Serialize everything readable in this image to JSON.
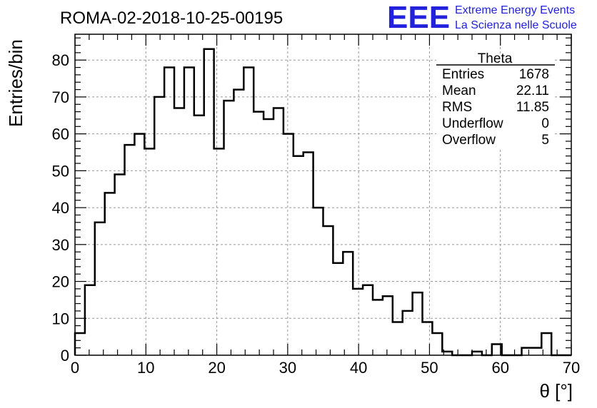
{
  "title": "ROMA-02-2018-10-25-00195",
  "logo": {
    "mark": "EEE",
    "line1": "Extreme Energy Events",
    "line2": "La Scienza nelle Scuole",
    "color": "#2222dd"
  },
  "stats": {
    "name": "Theta",
    "rows": [
      {
        "label": "Entries",
        "value": "1678"
      },
      {
        "label": "Mean",
        "value": "22.11"
      },
      {
        "label": "RMS",
        "value": "11.85"
      },
      {
        "label": "Underflow",
        "value": "0"
      },
      {
        "label": "Overflow",
        "value": "5"
      }
    ]
  },
  "chart_data": {
    "type": "bar",
    "style": "step-histogram",
    "title": "ROMA-02-2018-10-25-00195",
    "xlabel": "θ [°]",
    "ylabel": "Entries/bin",
    "xlim": [
      0,
      70
    ],
    "ylim": [
      0,
      87
    ],
    "xticks": [
      0,
      10,
      20,
      30,
      40,
      50,
      60,
      70
    ],
    "yticks": [
      0,
      10,
      20,
      30,
      40,
      50,
      60,
      70,
      80
    ],
    "grid": true,
    "bin_width": 1.4,
    "values": [
      6,
      19,
      36,
      44,
      49,
      57,
      60,
      56,
      70,
      78,
      67,
      78,
      65,
      83,
      56,
      69,
      72,
      78,
      66,
      64,
      67,
      60,
      54,
      55,
      40,
      35,
      25,
      28,
      18,
      19,
      15,
      16,
      9,
      12,
      17,
      9,
      6,
      1,
      0,
      0,
      1,
      0,
      3,
      0,
      0,
      2,
      2,
      6,
      0,
      0
    ]
  }
}
